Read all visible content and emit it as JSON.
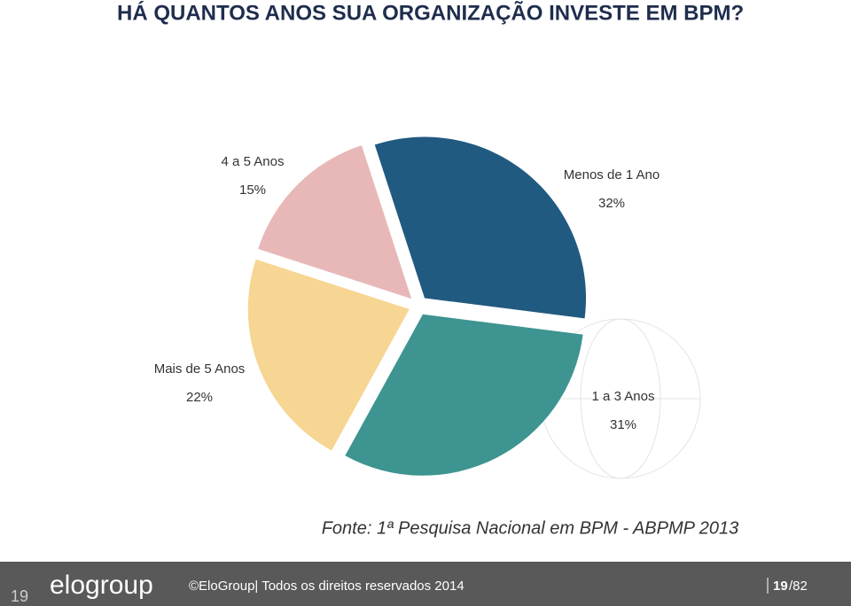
{
  "chart_data": {
    "type": "pie",
    "title": "HÁ QUANTOS ANOS SUA ORGANIZAÇÃO INVESTE EM BPM?",
    "categories": [
      "Menos de 1 Ano",
      "1 a 3 Anos",
      "Mais de 5 Anos",
      "4 a 5 Anos"
    ],
    "values": [
      32,
      31,
      22,
      15
    ],
    "value_labels": [
      "32%",
      "31%",
      "22%",
      "15%"
    ],
    "colors": [
      "#215a80",
      "#3d9490",
      "#f7d592",
      "#e8b8b8"
    ]
  },
  "source": "Fonte: 1ª Pesquisa Nacional em BPM - ABPMP 2013",
  "footer": {
    "slide_number": "19",
    "logo": "elogroup",
    "copyright": "©EloGroup| Todos os direitos reservados 2014",
    "page": "19",
    "page_total": "/82"
  }
}
